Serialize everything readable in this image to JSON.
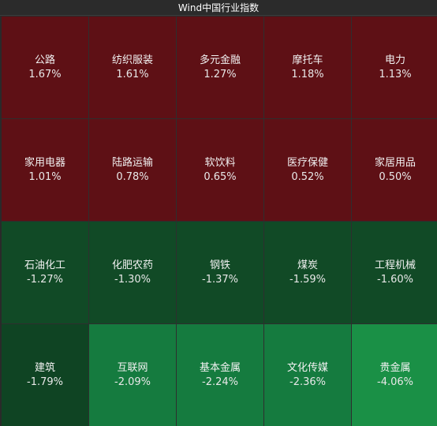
{
  "window": {
    "title": "Wind中国行业指数"
  },
  "colors": {
    "up": "#5e1015",
    "down_dark": "#114a26",
    "down_darker": "#0f4423",
    "down_mid": "#157b3f",
    "down_strong": "#1a9046"
  },
  "tiles": [
    {
      "name": "公路",
      "pct": "1.67%",
      "tone": "up"
    },
    {
      "name": "纺织服装",
      "pct": "1.61%",
      "tone": "up"
    },
    {
      "name": "多元金融",
      "pct": "1.27%",
      "tone": "up"
    },
    {
      "name": "摩托车",
      "pct": "1.18%",
      "tone": "up"
    },
    {
      "name": "电力",
      "pct": "1.13%",
      "tone": "up"
    },
    {
      "name": "家用电器",
      "pct": "1.01%",
      "tone": "up"
    },
    {
      "name": "陆路运输",
      "pct": "0.78%",
      "tone": "up"
    },
    {
      "name": "软饮料",
      "pct": "0.65%",
      "tone": "up"
    },
    {
      "name": "医疗保健",
      "pct": "0.52%",
      "tone": "up"
    },
    {
      "name": "家居用品",
      "pct": "0.50%",
      "tone": "up"
    },
    {
      "name": "石油化工",
      "pct": "-1.27%",
      "tone": "down-dark"
    },
    {
      "name": "化肥农药",
      "pct": "-1.30%",
      "tone": "down-dark"
    },
    {
      "name": "钢铁",
      "pct": "-1.37%",
      "tone": "down-dark"
    },
    {
      "name": "煤炭",
      "pct": "-1.59%",
      "tone": "down-dark"
    },
    {
      "name": "工程机械",
      "pct": "-1.60%",
      "tone": "down-dark"
    },
    {
      "name": "建筑",
      "pct": "-1.79%",
      "tone": "down-darker"
    },
    {
      "name": "互联网",
      "pct": "-2.09%",
      "tone": "down-mid"
    },
    {
      "name": "基本金属",
      "pct": "-2.24%",
      "tone": "down-mid"
    },
    {
      "name": "文化传媒",
      "pct": "-2.36%",
      "tone": "down-mid"
    },
    {
      "name": "贵金属",
      "pct": "-4.06%",
      "tone": "down-strong"
    }
  ]
}
